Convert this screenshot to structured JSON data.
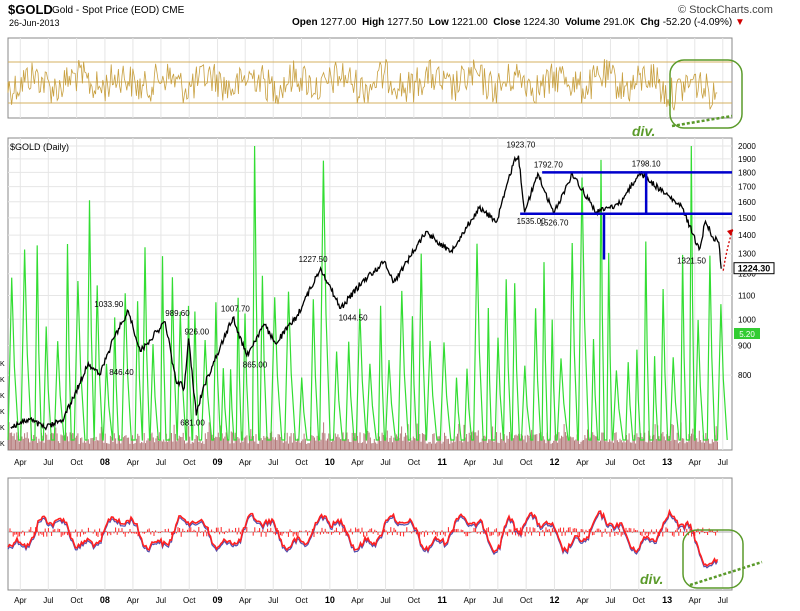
{
  "header": {
    "symbol": "$GOLD",
    "description": "Gold - Spot Price (EOD)",
    "exchange": "CME",
    "date": "26-Jun-2013",
    "brand": "© StockCharts.com",
    "open_label": "Open",
    "open": "1277.00",
    "high_label": "High",
    "high": "1277.50",
    "low_label": "Low",
    "low": "1221.00",
    "close_label": "Close",
    "close": "1224.30",
    "volume_label": "Volume",
    "volume": "291.0K",
    "chg_label": "Chg",
    "chg": "-52.20 (-4.09%)"
  },
  "colors": {
    "price": "#000000",
    "volume": "#33dd33",
    "volume_bars": "#b47a7a",
    "top_indicator": "#c8a040",
    "macd_red": "#ff2020",
    "macd_blue": "#5050b0",
    "channel": "#0000cc",
    "annotation_green": "#5a9a2a",
    "grid": "#e6e6e6",
    "current_label_bg": "#ffffff",
    "volume_label_bg": "#33cc33"
  },
  "chart_data": {
    "type": "line",
    "title": "$GOLD (Daily)",
    "y_scale": "log",
    "ylim": [
      650,
      2000
    ],
    "y_ticks": [
      "2000",
      "1900",
      "1800",
      "1700",
      "1600",
      "1500",
      "1400",
      "1300",
      "1200",
      "1100",
      "1000",
      "900",
      "800"
    ],
    "x_tick_labels": [
      "Apr",
      "Jul",
      "Oct",
      "08",
      "Apr",
      "Jul",
      "Oct",
      "09",
      "Apr",
      "Jul",
      "Oct",
      "10",
      "Apr",
      "Jul",
      "Oct",
      "11",
      "Apr",
      "Jul",
      "Oct",
      "12",
      "Apr",
      "Jul",
      "Oct",
      "13",
      "Apr",
      "Jul"
    ],
    "year_ticks": [
      "08",
      "09",
      "10",
      "11",
      "12",
      "13"
    ],
    "price_path": [
      [
        "2007-03-01",
        650
      ],
      [
        "2007-05-01",
        670
      ],
      [
        "2007-06-20",
        648
      ],
      [
        "2007-08-15",
        668
      ],
      [
        "2007-09-20",
        730
      ],
      [
        "2007-11-08",
        840
      ],
      [
        "2007-12-15",
        800
      ],
      [
        "2008-01-31",
        930
      ],
      [
        "2008-03-17",
        1033.9
      ],
      [
        "2008-04-25",
        880
      ],
      [
        "2008-05-25",
        920
      ],
      [
        "2008-07-15",
        989.6
      ],
      [
        "2008-08-18",
        785
      ],
      [
        "2008-09-15",
        760
      ],
      [
        "2008-09-29",
        926
      ],
      [
        "2008-10-24",
        681
      ],
      [
        "2008-11-15",
        760
      ],
      [
        "2008-12-31",
        870
      ],
      [
        "2009-02-20",
        1007.7
      ],
      [
        "2009-04-06",
        865
      ],
      [
        "2009-06-01",
        980
      ],
      [
        "2009-07-08",
        908
      ],
      [
        "2009-09-15",
        1010
      ],
      [
        "2009-12-02",
        1227.5
      ],
      [
        "2010-02-05",
        1044.5
      ],
      [
        "2010-04-15",
        1160
      ],
      [
        "2010-06-28",
        1260
      ],
      [
        "2010-07-28",
        1160
      ],
      [
        "2010-11-09",
        1420
      ],
      [
        "2011-01-28",
        1310
      ],
      [
        "2011-05-01",
        1560
      ],
      [
        "2011-06-28",
        1480
      ],
      [
        "2011-08-22",
        1880
      ],
      [
        "2011-09-06",
        1923.7
      ],
      [
        "2011-09-26",
        1535
      ],
      [
        "2011-11-08",
        1792.7
      ],
      [
        "2011-12-29",
        1526.7
      ],
      [
        "2012-02-28",
        1790
      ],
      [
        "2012-05-16",
        1535
      ],
      [
        "2012-08-01",
        1590
      ],
      [
        "2012-10-04",
        1798.1
      ],
      [
        "2012-12-28",
        1650
      ],
      [
        "2013-02-20",
        1560
      ],
      [
        "2013-04-15",
        1321.5
      ],
      [
        "2013-05-06",
        1480
      ],
      [
        "2013-05-30",
        1390
      ],
      [
        "2013-06-18",
        1360
      ],
      [
        "2013-06-26",
        1224.3
      ]
    ],
    "annotations": [
      {
        "text": "1033.90",
        "x": "2008-03-17",
        "y": 1033.9
      },
      {
        "text": "989.60",
        "x": "2008-07-15",
        "y": 989.6
      },
      {
        "text": "926.00",
        "x": "2008-09-29",
        "y": 926
      },
      {
        "text": "846.40",
        "x": "2008-01-15",
        "y": 846.4
      },
      {
        "text": "681.00",
        "x": "2008-10-24",
        "y": 681
      },
      {
        "text": "1007.70",
        "x": "2009-02-20",
        "y": 1007.7
      },
      {
        "text": "865.00",
        "x": "2009-04-06",
        "y": 865
      },
      {
        "text": "1227.50",
        "x": "2009-12-02",
        "y": 1227.5
      },
      {
        "text": "1044.50",
        "x": "2010-02-05",
        "y": 1044.5
      },
      {
        "text": "1923.70",
        "x": "2011-09-06",
        "y": 1923.7
      },
      {
        "text": "1535.00",
        "x": "2011-09-26",
        "y": 1535
      },
      {
        "text": "1792.70",
        "x": "2011-11-08",
        "y": 1792.7
      },
      {
        "text": "1526.70",
        "x": "2011-12-29",
        "y": 1526.7
      },
      {
        "text": "1798.10",
        "x": "2012-10-04",
        "y": 1798.1
      },
      {
        "text": "1321.50",
        "x": "2013-04-15",
        "y": 1321.5
      }
    ],
    "current_price_label": "1224.30",
    "volume_label": "5.20",
    "channel": {
      "top": 1800,
      "bottom": 1525,
      "start": "2011-10-01",
      "end": "2013-07-31",
      "divider": "2012-10-25",
      "drop_line_x": "2012-06-10",
      "drop_line_bottom": 1270
    },
    "divergence_labels": [
      "div.",
      "div."
    ]
  }
}
